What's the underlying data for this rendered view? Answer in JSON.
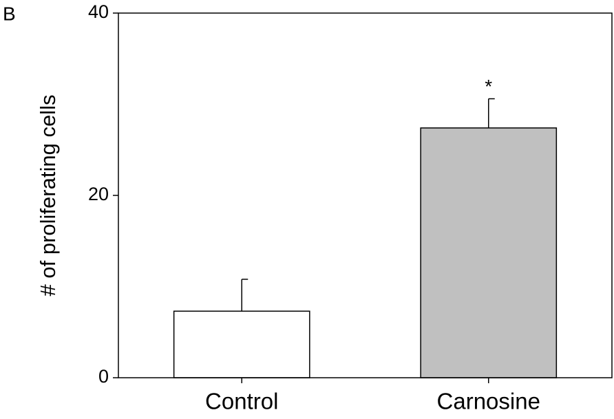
{
  "chart_data": {
    "type": "bar",
    "panel_label": "B",
    "ylabel": "# of proliferating cells",
    "categories": [
      "Control",
      "Carnosine"
    ],
    "values": [
      7.3,
      27.4
    ],
    "errors": [
      3.5,
      3.2
    ],
    "colors": [
      "#ffffff",
      "#c0c0c0"
    ],
    "ylim": [
      0,
      40
    ],
    "yticks": [
      0,
      20,
      40
    ],
    "grid": false,
    "annotations": [
      {
        "text": "*",
        "category": "Carnosine"
      }
    ]
  }
}
